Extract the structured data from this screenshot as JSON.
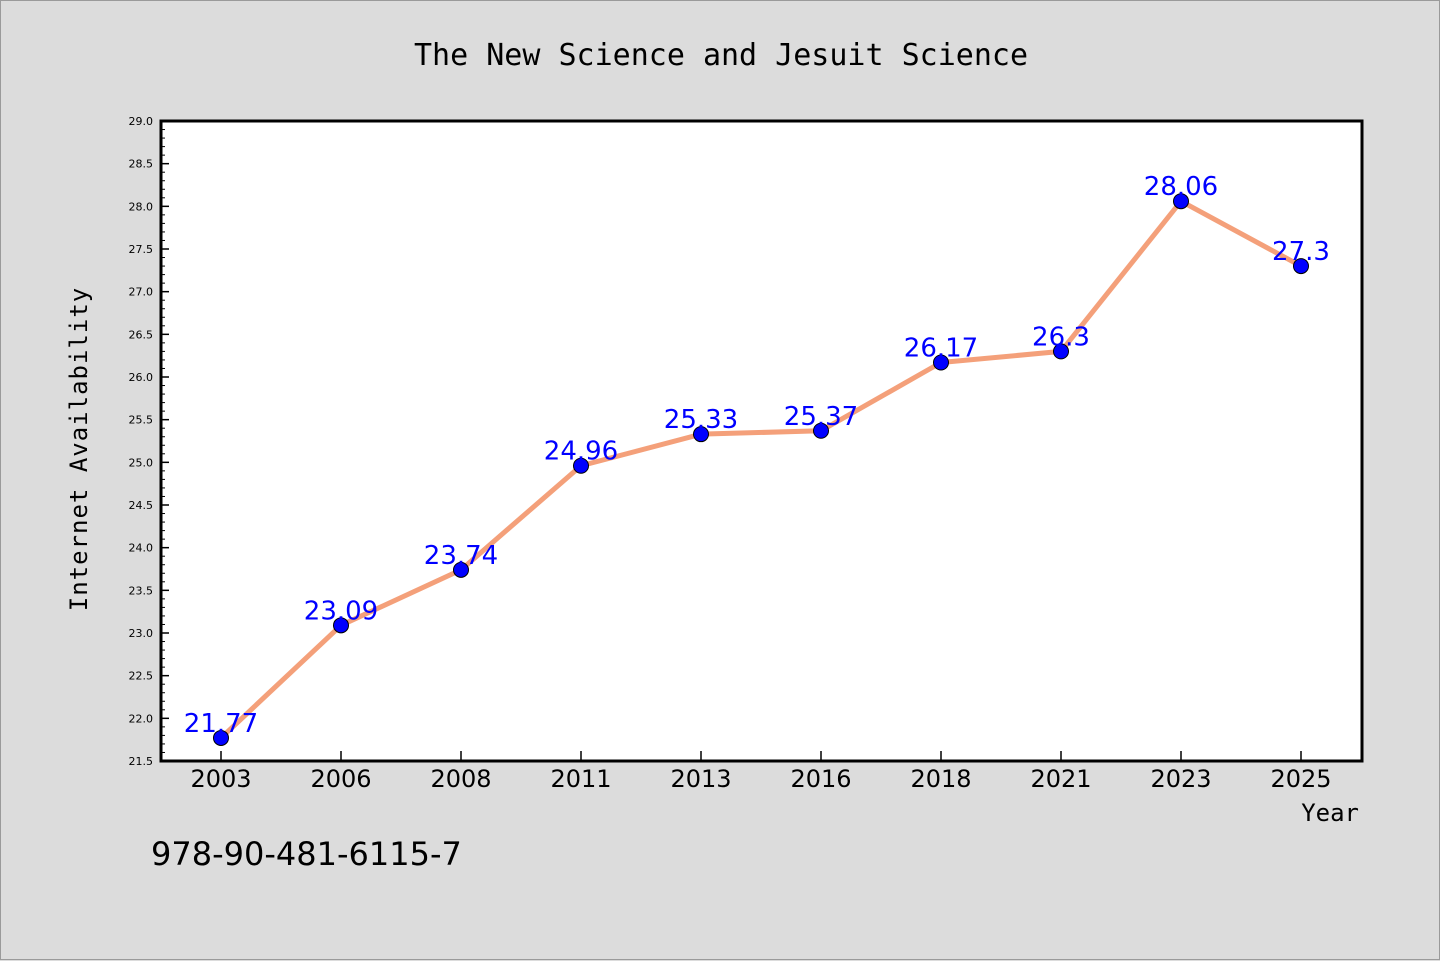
{
  "chart_data": {
    "type": "line",
    "title": "The New Science and Jesuit Science",
    "xlabel": "Year",
    "ylabel": "Internet Availability",
    "categories": [
      "2003",
      "2006",
      "2008",
      "2011",
      "2013",
      "2016",
      "2018",
      "2021",
      "2023",
      "2025"
    ],
    "series": [
      {
        "values": [
          21.77,
          23.09,
          23.74,
          24.96,
          25.33,
          25.37,
          26.17,
          26.3,
          28.06,
          27.3
        ]
      }
    ],
    "data_labels": [
      "21.77",
      "23.09",
      "23.74",
      "24.96",
      "25.33",
      "25.37",
      "26.17",
      "26.3",
      "28.06",
      "27.3"
    ],
    "ylim": [
      21.5,
      29.0
    ],
    "yticks": [
      "21.5",
      "22.0",
      "22.5",
      "23.0",
      "23.5",
      "24.0",
      "24.5",
      "25.0",
      "25.5",
      "26.0",
      "26.5",
      "27.0",
      "27.5",
      "28.0",
      "28.5",
      "29.0"
    ],
    "grid": false,
    "line_color": "#f4a07a",
    "marker_color": "#0000ff",
    "label_color": "#0000ff"
  },
  "footer": {
    "text": "978-90-481-6115-7"
  }
}
